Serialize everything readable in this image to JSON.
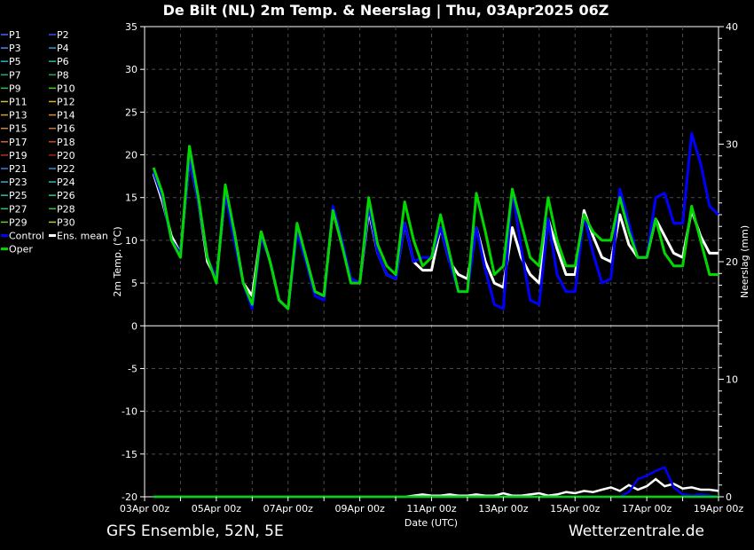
{
  "chart_data": {
    "type": "line",
    "title": "De Bilt  (NL)  2m Temp. & Neerslag | Thu, 03Apr2025 06Z",
    "xlabel": "Date (UTC)",
    "ylabel": "2m Temp. (°C)",
    "ylabel_right": "Neerslag (mm)",
    "ylim": [
      -20,
      35
    ],
    "ylim_right": [
      0,
      40
    ],
    "y_ticks": [
      35,
      30,
      25,
      20,
      15,
      10,
      5,
      0,
      -5,
      -10,
      -15,
      -20
    ],
    "y_right_ticks": [
      40,
      30,
      20,
      10,
      0
    ],
    "x_ticks": [
      "03Apr 00z",
      "05Apr 00z",
      "07Apr 00z",
      "09Apr 00z",
      "11Apr 00z",
      "13Apr 00z",
      "15Apr 00z",
      "17Apr 00z",
      "19Apr 00z"
    ],
    "x_start_day": 0.25,
    "x_step_day": 0.25,
    "grid": true,
    "legend_placement": "left",
    "legend": [
      {
        "name": "P1",
        "color": "#3a6bff"
      },
      {
        "name": "P2",
        "color": "#2a52e8"
      },
      {
        "name": "P3",
        "color": "#4f86ff"
      },
      {
        "name": "P4",
        "color": "#3399dd"
      },
      {
        "name": "P5",
        "color": "#22b8c8"
      },
      {
        "name": "P6",
        "color": "#22b89a"
      },
      {
        "name": "P7",
        "color": "#19b27a"
      },
      {
        "name": "P8",
        "color": "#22a860"
      },
      {
        "name": "P9",
        "color": "#33c24a"
      },
      {
        "name": "P10",
        "color": "#44d122"
      },
      {
        "name": "P11",
        "color": "#c8c040"
      },
      {
        "name": "P12",
        "color": "#d8b020"
      },
      {
        "name": "P13",
        "color": "#d0a030"
      },
      {
        "name": "P14",
        "color": "#d89020"
      },
      {
        "name": "P15",
        "color": "#d08848"
      },
      {
        "name": "P16",
        "color": "#c87838"
      },
      {
        "name": "P17",
        "color": "#c86830"
      },
      {
        "name": "P18",
        "color": "#c84828"
      },
      {
        "name": "P19",
        "color": "#b83020"
      },
      {
        "name": "P20",
        "color": "#a82010"
      },
      {
        "name": "P21",
        "color": "#3a7ad8"
      },
      {
        "name": "P22",
        "color": "#2a90d0"
      },
      {
        "name": "P23",
        "color": "#40a8d8"
      },
      {
        "name": "P24",
        "color": "#30b8c0"
      },
      {
        "name": "P25",
        "color": "#28c0a8"
      },
      {
        "name": "P26",
        "color": "#22c890"
      },
      {
        "name": "P27",
        "color": "#30c070"
      },
      {
        "name": "P28",
        "color": "#40c040"
      },
      {
        "name": "P29",
        "color": "#60d030"
      },
      {
        "name": "P30",
        "color": "#b8c830"
      },
      {
        "name": "Control",
        "color": "#0000ff"
      },
      {
        "name": "Ens. mean",
        "color": "#ffffff"
      },
      {
        "name": "Oper",
        "color": "#00d800"
      }
    ],
    "series": [
      {
        "name": "Ens. mean",
        "temp": [
          17.8,
          14.5,
          10.5,
          8.5,
          19.5,
          14.5,
          7.5,
          5.5,
          15.5,
          11,
          5,
          3.5,
          11,
          7.5,
          3,
          2,
          11.5,
          8,
          4,
          3.5,
          13.5,
          9.5,
          5.5,
          5,
          13.5,
          8.5,
          6,
          5.5,
          12,
          7.5,
          6.5,
          6.5,
          11.5,
          7.5,
          6,
          5.5,
          11.5,
          7.5,
          5,
          4.5,
          11.5,
          8,
          6,
          5,
          12.5,
          9,
          6,
          6,
          13.5,
          10.5,
          8,
          7.5,
          13,
          9.5,
          8,
          8,
          12.5,
          10.5,
          8.5,
          8,
          13.5,
          10.5,
          8.5,
          8.5
        ],
        "precip": [
          0,
          0,
          0,
          0,
          0,
          0,
          0,
          0,
          0,
          0,
          0,
          0,
          0,
          0,
          0,
          0,
          0,
          0,
          0,
          0,
          0,
          0,
          0,
          0,
          0,
          0,
          0,
          0,
          0,
          0.1,
          0.2,
          0.1,
          0.1,
          0.2,
          0.1,
          0.1,
          0.2,
          0.1,
          0.1,
          0.3,
          0.1,
          0.1,
          0.2,
          0.3,
          0.1,
          0.2,
          0.4,
          0.3,
          0.5,
          0.4,
          0.6,
          0.8,
          0.5,
          1,
          0.6,
          0.9,
          1.5,
          0.9,
          1.1,
          0.7,
          0.8,
          0.6,
          0.6,
          0.5
        ]
      },
      {
        "name": "Control",
        "temp": [
          18,
          15,
          10,
          8.5,
          19.5,
          14.5,
          8,
          5.5,
          15.5,
          10,
          5,
          2,
          10.5,
          7.5,
          3,
          2,
          11,
          7.5,
          3.5,
          3,
          14,
          10,
          5.5,
          5,
          14,
          8.5,
          6,
          5.5,
          12,
          7.5,
          8,
          8,
          11.5,
          7.5,
          4,
          4,
          11.5,
          6.5,
          2.5,
          2,
          16,
          9,
          3,
          2.5,
          12.5,
          6,
          4,
          4,
          13,
          8.5,
          5,
          5.5,
          16,
          12,
          8,
          8,
          15,
          15.5,
          12,
          12,
          22.5,
          19,
          14,
          13
        ],
        "precip": [
          0,
          0,
          0,
          0,
          0,
          0,
          0,
          0,
          0,
          0,
          0,
          0,
          0,
          0,
          0,
          0,
          0,
          0,
          0,
          0,
          0,
          0,
          0,
          0,
          0,
          0,
          0,
          0,
          0,
          0,
          0,
          0,
          0,
          0,
          0,
          0,
          0,
          0,
          0,
          0,
          0,
          0,
          0,
          0,
          0,
          0,
          0,
          0,
          0,
          0,
          0,
          0,
          0,
          0.4,
          1.5,
          1.8,
          2.2,
          2.5,
          0.8,
          0.2,
          0.1,
          0.2,
          0.1,
          0
        ]
      },
      {
        "name": "Oper",
        "temp": [
          18.5,
          15.5,
          10,
          8,
          21,
          15,
          8,
          5,
          16.5,
          11,
          5,
          2.5,
          11,
          7.5,
          3,
          2,
          12,
          8,
          4,
          3.5,
          13.5,
          9.5,
          5,
          5,
          15,
          9.5,
          7,
          6,
          14.5,
          10,
          7,
          8,
          13,
          8.5,
          4,
          4,
          15.5,
          11,
          6,
          7,
          16,
          12,
          8,
          7,
          15,
          10,
          7,
          7,
          13,
          11,
          10,
          10,
          15,
          11,
          8,
          8,
          12.5,
          8.5,
          7,
          7,
          14,
          10,
          6,
          6
        ],
        "precip": [
          0,
          0,
          0,
          0,
          0,
          0,
          0,
          0,
          0,
          0,
          0,
          0,
          0,
          0,
          0,
          0,
          0,
          0,
          0,
          0,
          0,
          0,
          0,
          0,
          0,
          0,
          0,
          0,
          0,
          0,
          0,
          0,
          0,
          0,
          0,
          0,
          0,
          0,
          0,
          0,
          0,
          0,
          0,
          0,
          0,
          0,
          0,
          0,
          0,
          0,
          0,
          0,
          0,
          0,
          0,
          0,
          0,
          0,
          0,
          0,
          0,
          0,
          0,
          0
        ]
      }
    ]
  },
  "footer": {
    "left": "GFS Ensemble, 52N, 5E",
    "right": "Wetterzentrale.de"
  }
}
